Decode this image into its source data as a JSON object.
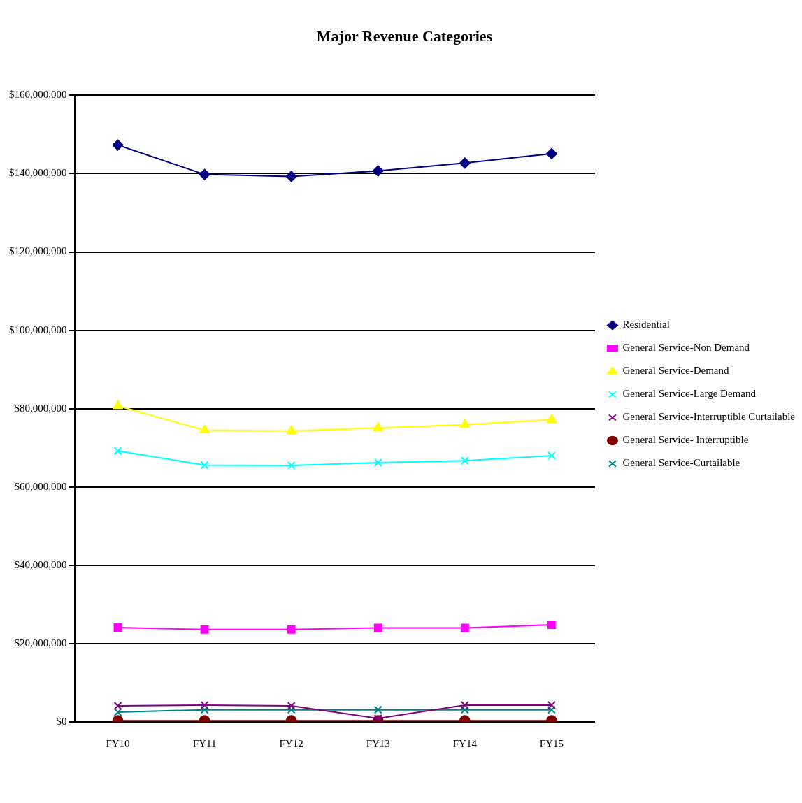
{
  "chart_data": {
    "type": "line",
    "title": "Major Revenue Categories",
    "categories": [
      "FY10",
      "FY11",
      "FY12",
      "FY13",
      "FY14",
      "FY15"
    ],
    "series": [
      {
        "name": "Residential",
        "color": "#000080",
        "marker": "diamond",
        "values": [
          147300000,
          139800000,
          139300000,
          140700000,
          142700000,
          145100000
        ]
      },
      {
        "name": "General Service-Non Demand",
        "color": "#ff00ff",
        "marker": "square",
        "values": [
          24100000,
          23600000,
          23600000,
          24000000,
          24000000,
          24800000
        ]
      },
      {
        "name": "General Service-Demand",
        "color": "#ffff00",
        "marker": "triangle",
        "values": [
          80700000,
          74500000,
          74300000,
          75100000,
          75900000,
          77200000
        ]
      },
      {
        "name": "General Service-Large Demand",
        "color": "#00ffff",
        "marker": "cross",
        "values": [
          69200000,
          65600000,
          65500000,
          66200000,
          66700000,
          68000000
        ]
      },
      {
        "name": "General Service-Interruptible Curtailable",
        "color": "#800080",
        "marker": "cross",
        "values": [
          4100000,
          4300000,
          4100000,
          900000,
          4300000,
          4300000
        ]
      },
      {
        "name": "General Service- Interruptible",
        "color": "#800000",
        "marker": "circle",
        "values": [
          300000,
          300000,
          300000,
          300000,
          300000,
          300000
        ]
      },
      {
        "name": "General Service-Curtailable",
        "color": "#008080",
        "marker": "cross",
        "values": [
          2500000,
          3100000,
          3100000,
          3100000,
          3100000,
          3100000
        ]
      }
    ],
    "ylim": [
      0,
      160000000
    ],
    "yticks": [
      {
        "value": 0,
        "label": "$0"
      },
      {
        "value": 20000000,
        "label": "$20,000,000"
      },
      {
        "value": 40000000,
        "label": "$40,000,000"
      },
      {
        "value": 60000000,
        "label": "$60,000,000"
      },
      {
        "value": 80000000,
        "label": "$80,000,000"
      },
      {
        "value": 100000000,
        "label": "$100,000,000"
      },
      {
        "value": 120000000,
        "label": "$120,000,000"
      },
      {
        "value": 140000000,
        "label": "$140,000,000"
      },
      {
        "value": 160000000,
        "label": "$160,000,000"
      }
    ],
    "grid": "y",
    "legend": "right"
  }
}
